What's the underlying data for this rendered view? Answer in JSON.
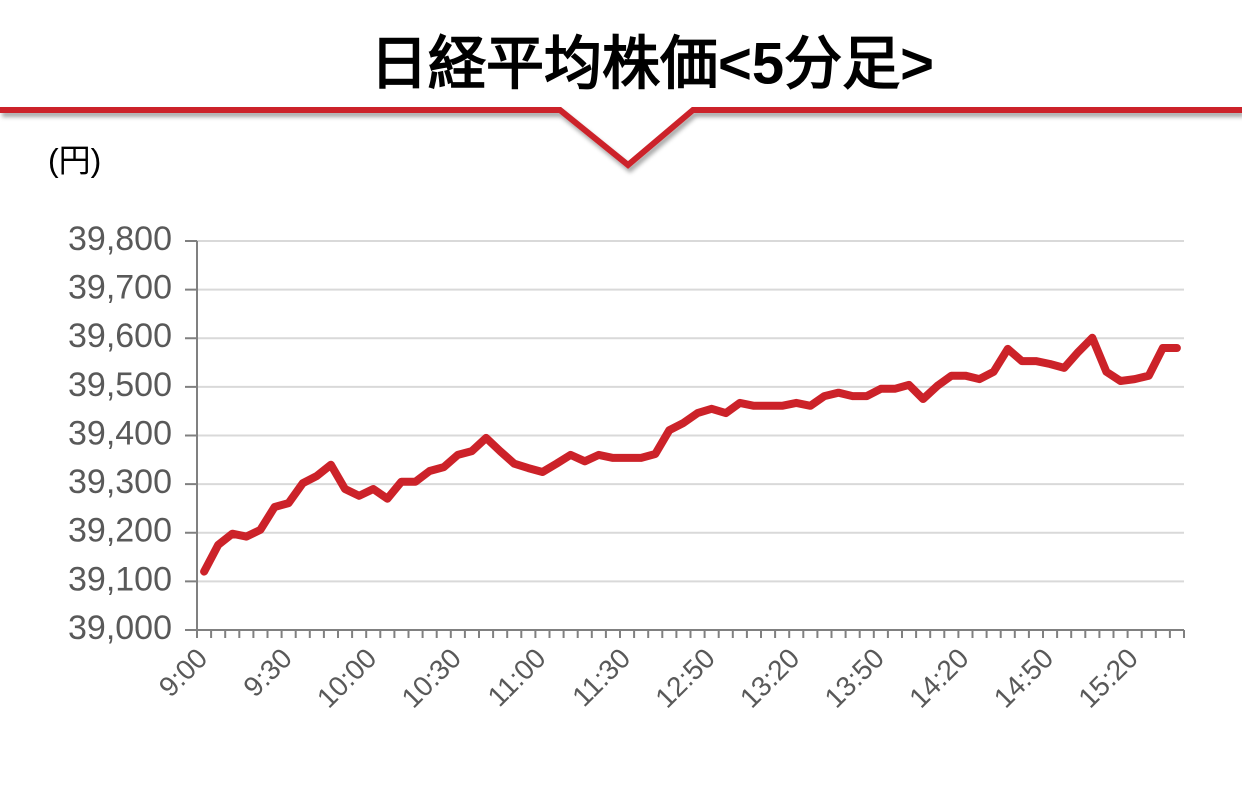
{
  "chart_data": {
    "type": "line",
    "title": "日経平均株価<5分足>",
    "y_label": "(円)",
    "categories": [
      "9:00",
      null,
      null,
      null,
      null,
      null,
      "9:30",
      null,
      null,
      null,
      null,
      null,
      "10:00",
      null,
      null,
      null,
      null,
      null,
      "10:30",
      null,
      null,
      null,
      null,
      null,
      "11:00",
      null,
      null,
      null,
      null,
      null,
      "11:30",
      null,
      null,
      null,
      null,
      null,
      "12:50",
      null,
      null,
      null,
      null,
      null,
      "13:20",
      null,
      null,
      null,
      null,
      null,
      "13:50",
      null,
      null,
      null,
      null,
      null,
      "14:20",
      null,
      null,
      null,
      null,
      null,
      "14:50",
      null,
      null,
      null,
      null,
      null,
      "15:20",
      null,
      null,
      null
    ],
    "series": [
      {
        "color": "#cc2229",
        "values": [
          39120,
          39175,
          39198,
          39192,
          39206,
          39253,
          39261,
          39302,
          39317,
          39340,
          39290,
          39276,
          39290,
          39270,
          39305,
          39305,
          39327,
          39335,
          39360,
          39368,
          39395,
          39368,
          39342,
          39333,
          39325,
          39342,
          39360,
          39347,
          39360,
          39354,
          39354,
          39354,
          39362,
          39411,
          39426,
          39446,
          39455,
          39446,
          39467,
          39461,
          39461,
          39461,
          39467,
          39461,
          39481,
          39488,
          39481,
          39481,
          39496,
          39496,
          39504,
          39475,
          39502,
          39523,
          39523,
          39516,
          39531,
          39578,
          39553,
          39553,
          39547,
          39539,
          39572,
          39601,
          39531,
          39512,
          39516,
          39523,
          39580,
          39580
        ]
      }
    ],
    "ylim": [
      39000,
      39800
    ],
    "yticks": [
      {
        "value": 39000,
        "label": "39,000"
      },
      {
        "value": 39100,
        "label": "39,100"
      },
      {
        "value": 39200,
        "label": "39,200"
      },
      {
        "value": 39300,
        "label": "39,300"
      },
      {
        "value": 39400,
        "label": "39,400"
      },
      {
        "value": 39500,
        "label": "39,500"
      },
      {
        "value": 39600,
        "label": "39,600"
      },
      {
        "value": 39700,
        "label": "39,700"
      },
      {
        "value": 39800,
        "label": "39,800"
      }
    ],
    "grid": true
  }
}
